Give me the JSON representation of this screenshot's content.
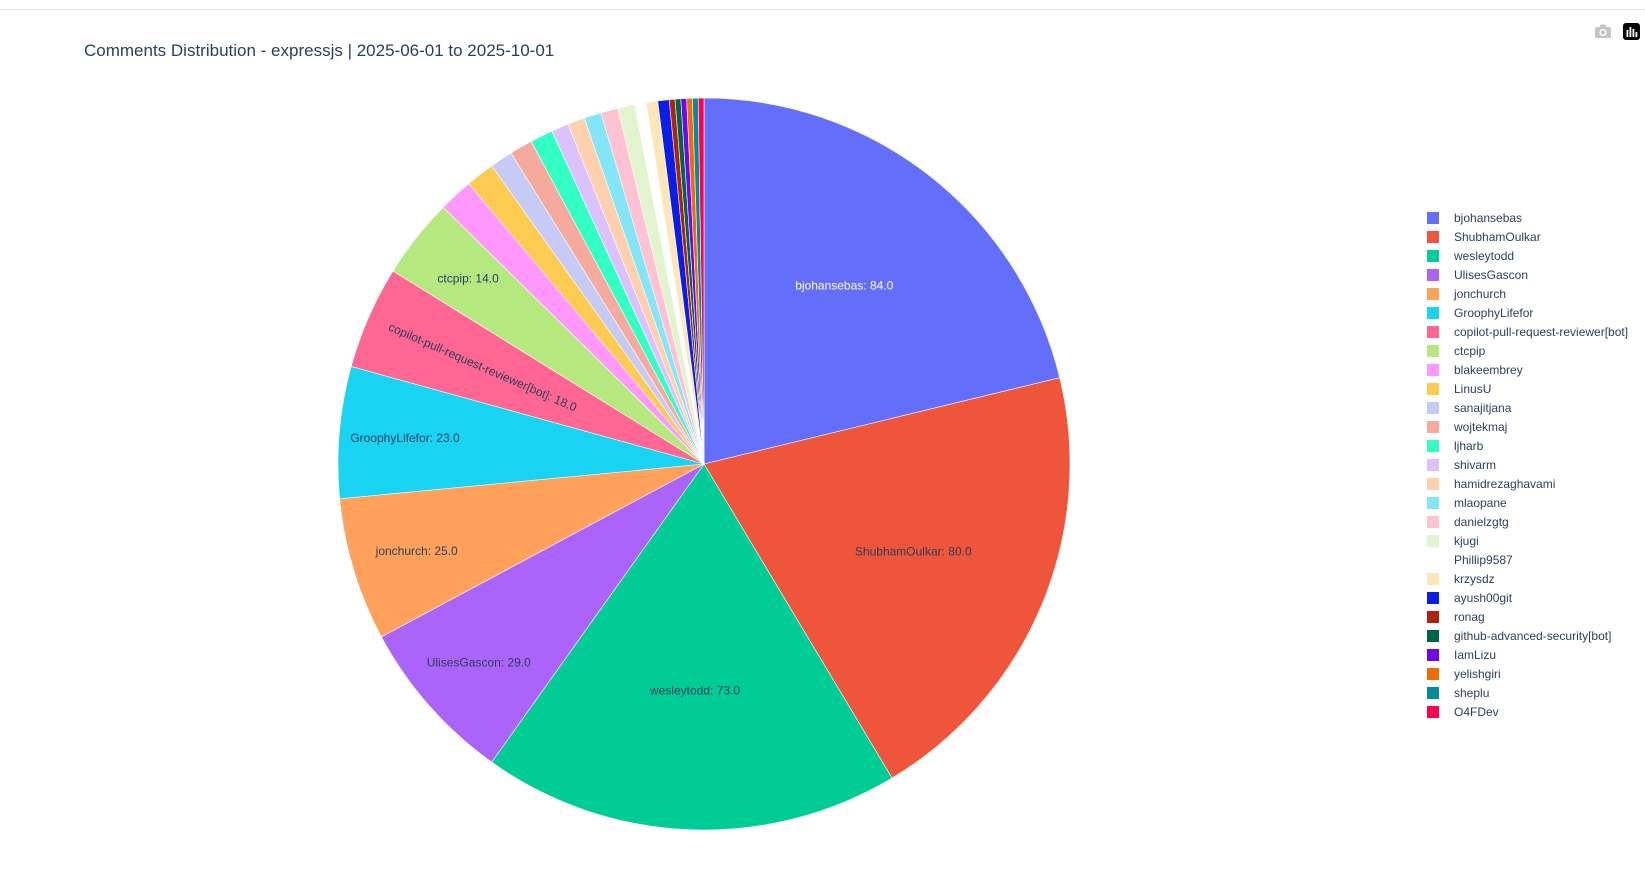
{
  "title": "Comments Distribution - expressjs | 2025-06-01 to 2025-10-01",
  "modebar": [
    {
      "icon": "camera-icon",
      "name": "download-plot-button"
    },
    {
      "icon": "plotly-logo-icon",
      "name": "plotly-logo-button"
    }
  ],
  "chart_data": {
    "type": "pie",
    "title": "Comments Distribution - expressjs | 2025-06-01 to 2025-10-01",
    "legend_placement": "right",
    "sort": "descending",
    "direction": "clockwise",
    "start": "top",
    "slices": [
      {
        "label": "bjohansebas",
        "value": 84.0,
        "color": "#636efa",
        "text": "bjohansebas: 84.0"
      },
      {
        "label": "ShubhamOulkar",
        "value": 80.0,
        "color": "#ef553b",
        "text": "ShubhamOulkar: 80.0"
      },
      {
        "label": "wesleytodd",
        "value": 73.0,
        "color": "#00cc96",
        "text": "wesleytodd: 73.0"
      },
      {
        "label": "UlisesGascon",
        "value": 29.0,
        "color": "#ab63fa",
        "text": "UlisesGascon: 29.0"
      },
      {
        "label": "jonchurch",
        "value": 25.0,
        "color": "#ffa15a",
        "text": "jonchurch: 25.0"
      },
      {
        "label": "GroophyLifefor",
        "value": 23.0,
        "color": "#19d3f3",
        "text": "GroophyLifefor: 23.0"
      },
      {
        "label": "copilot-pull-request-reviewer[bot]",
        "value": 18.0,
        "color": "#ff6692",
        "text": "copilot-pull-request-reviewer[bot]: 18.0"
      },
      {
        "label": "ctcpip",
        "value": 14.0,
        "color": "#b6e880",
        "text": "ctcpip: 14.0"
      },
      {
        "label": "blakeembrey",
        "value": 6.0,
        "color": "#ff97ff",
        "text": ""
      },
      {
        "label": "LinusU",
        "value": 5.0,
        "color": "#fecb52",
        "text": ""
      },
      {
        "label": "sanajitjana",
        "value": 4.0,
        "color": "#c6cbf6",
        "text": ""
      },
      {
        "label": "wojtekmaj",
        "value": 4.0,
        "color": "#f6aa9d",
        "text": ""
      },
      {
        "label": "ljharb",
        "value": 4.0,
        "color": "#33ffc5",
        "text": ""
      },
      {
        "label": "shivarm",
        "value": 3.0,
        "color": "#ddc1fd",
        "text": ""
      },
      {
        "label": "hamidrezaghavami",
        "value": 3.0,
        "color": "#ffd0ad",
        "text": ""
      },
      {
        "label": "mlaopane",
        "value": 3.0,
        "color": "#84e5f8",
        "text": ""
      },
      {
        "label": "danielzgtg",
        "value": 3.0,
        "color": "#ffc2d3",
        "text": ""
      },
      {
        "label": "kjugi",
        "value": 3.0,
        "color": "#e2f4cd",
        "text": ""
      },
      {
        "label": "Phillip9587",
        "value": 2.0,
        "color": "#ffffff",
        "text": ""
      },
      {
        "label": "krzysdz",
        "value": 2.0,
        "color": "#fee6b9",
        "text": ""
      },
      {
        "label": "ayush00git",
        "value": 2.0,
        "color": "#0a1ee8",
        "text": ""
      },
      {
        "label": "ronag",
        "value": 1.0,
        "color": "#ad230e",
        "text": ""
      },
      {
        "label": "github-advanced-security[bot]",
        "value": 1.0,
        "color": "#006447",
        "text": ""
      },
      {
        "label": "IamLizu",
        "value": 1.0,
        "color": "#6e06f0",
        "text": ""
      },
      {
        "label": "yelishgiri",
        "value": 1.0,
        "color": "#f06c00",
        "text": ""
      },
      {
        "label": "sheplu",
        "value": 1.0,
        "color": "#008c9c",
        "text": ""
      },
      {
        "label": "O4FDev",
        "value": 1.0,
        "color": "#ff0050",
        "text": ""
      }
    ]
  }
}
